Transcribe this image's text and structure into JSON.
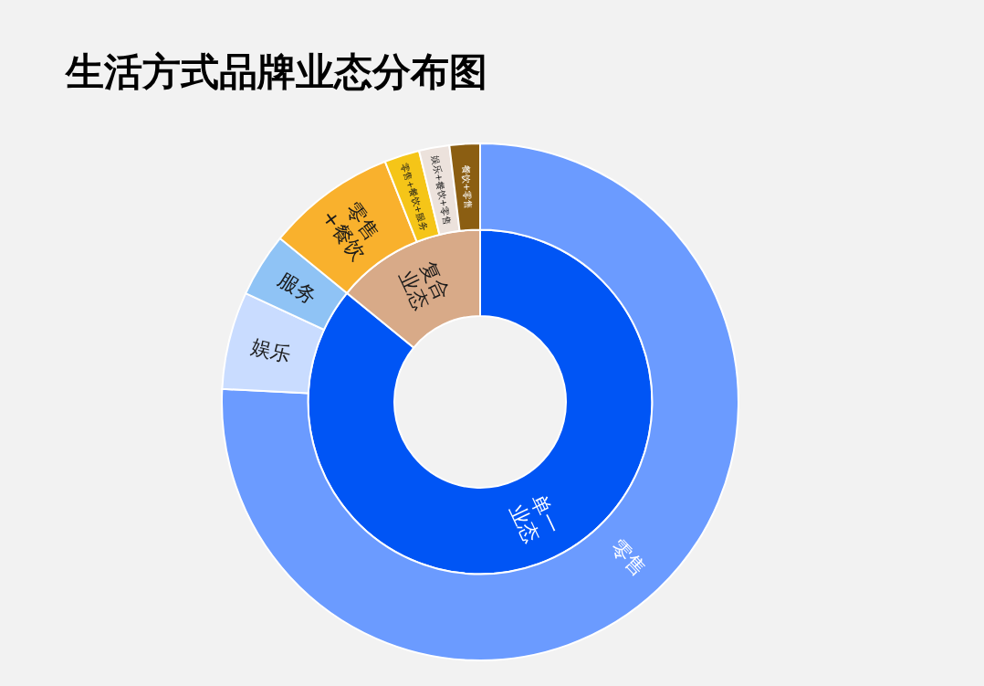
{
  "chart_data": [
    {
      "type": "donut",
      "title": "生活方式品牌业态分布图",
      "categories": [
        "单一业态",
        "复合业态"
      ],
      "values": [
        85.9,
        14.1
      ],
      "colors": [
        "#0055f5",
        "#d8aa88"
      ]
    },
    {
      "type": "donut",
      "categories": [
        "零售",
        "娱乐",
        "服务",
        "零售+餐饮",
        "零售+餐饮+服务",
        "娱乐+餐饮+零售",
        "餐饮+零售"
      ],
      "values": [
        75.8,
        6.1,
        4.0,
        8.1,
        2.2,
        1.9,
        1.9
      ],
      "colors": [
        "#6b9bff",
        "#c9dcff",
        "#8fc3f5",
        "#f9b12d",
        "#f5c518",
        "#ece2dc",
        "#8b5e12"
      ]
    }
  ]
}
